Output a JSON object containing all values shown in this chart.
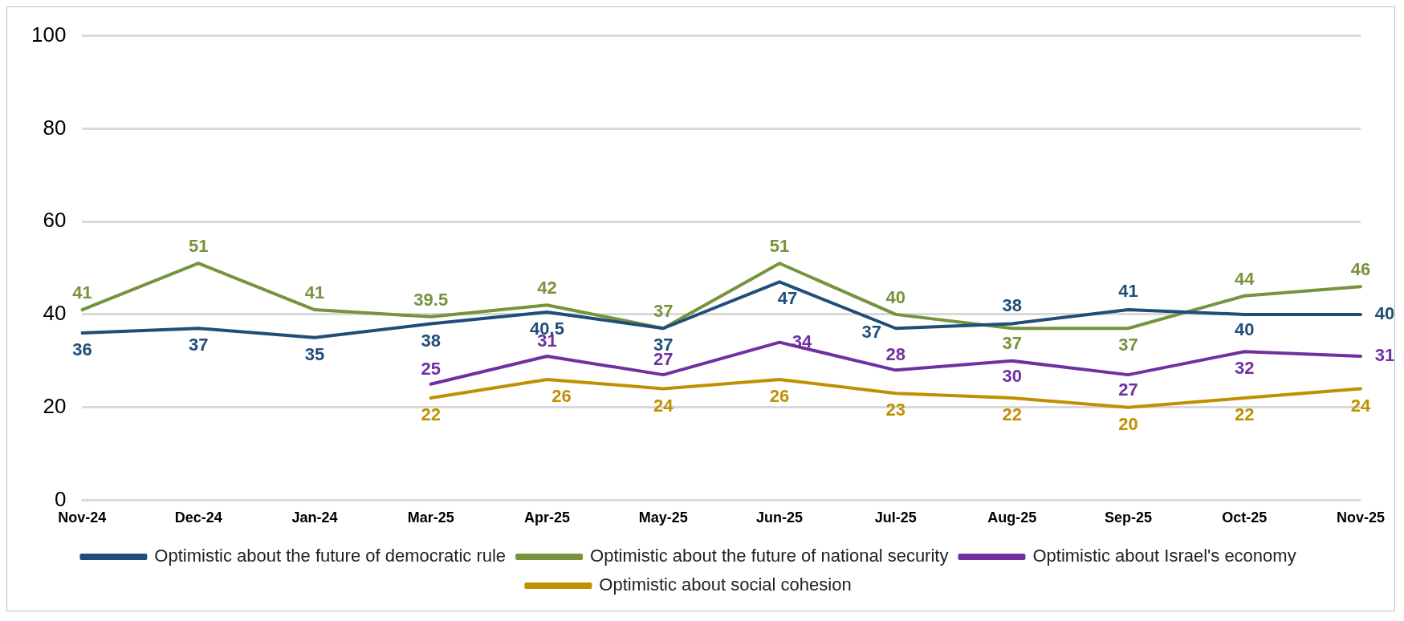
{
  "chart_data": {
    "type": "line",
    "categories": [
      "Nov-24",
      "Dec-24",
      "Jan-24",
      "Mar-25",
      "Apr-25",
      "May-25",
      "Jun-25",
      "Jul-25",
      "Aug-25",
      "Sep-25",
      "Oct-25",
      "Nov-25"
    ],
    "series": [
      {
        "name": "Optimistic about the future of democratic rule",
        "color": "#1f4e79",
        "values": [
          36,
          37,
          35,
          38,
          40.5,
          37,
          47,
          37,
          38,
          41,
          40,
          40
        ]
      },
      {
        "name": "Optimistic about the future of national security",
        "color": "#77933c",
        "values": [
          41,
          51,
          41,
          39.5,
          42,
          37,
          51,
          40,
          37,
          37,
          44,
          46
        ]
      },
      {
        "name": "Optimistic about Israel's economy",
        "color": "#7030a0",
        "values": [
          null,
          null,
          null,
          25,
          31,
          27,
          34,
          28,
          30,
          27,
          32,
          31
        ]
      },
      {
        "name": "Optimistic about social cohesion",
        "color": "#bf9000",
        "values": [
          null,
          null,
          null,
          22,
          26,
          24,
          26,
          23,
          22,
          20,
          22,
          24
        ]
      }
    ],
    "ylim": [
      0,
      100
    ],
    "yticks": [
      0,
      20,
      40,
      60,
      80,
      100
    ],
    "grid": "y",
    "legend": "bottom",
    "data_labels": true,
    "marker": "none",
    "line_style": "solid"
  }
}
